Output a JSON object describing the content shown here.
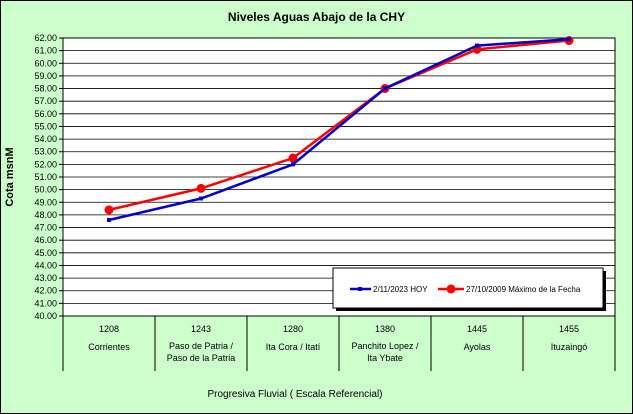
{
  "chart_data": {
    "type": "line",
    "title": "Niveles Aguas Abajo de la CHY",
    "ylabel": "Cota msnM",
    "xlabel": "Progresiva Fluvial ( Escala Referencial)",
    "ylim": [
      40,
      62
    ],
    "ytick_step": 1,
    "grid": true,
    "legend_position": "bottom-right",
    "categories": [
      {
        "km": "1208",
        "name": "Corrientes",
        "name2": ""
      },
      {
        "km": "1243",
        "name": "Paso de Patria /",
        "name2": "Paso de la Patria"
      },
      {
        "km": "1280",
        "name": "Ita Cora / Itatí",
        "name2": ""
      },
      {
        "km": "1380",
        "name": "Panchito Lopez /",
        "name2": "Ita Ybate"
      },
      {
        "km": "1445",
        "name": "Ayolas",
        "name2": ""
      },
      {
        "km": "1455",
        "name": "Ituzaingó",
        "name2": ""
      }
    ],
    "series": [
      {
        "name": "2/11/2023 HOY",
        "color": "#0000cc",
        "values": [
          47.6,
          49.3,
          52.0,
          58.0,
          61.4,
          61.9
        ]
      },
      {
        "name": "27/10/2009 Máximo de la Fecha",
        "color": "#ff0000",
        "values": [
          48.4,
          50.1,
          52.5,
          58.0,
          61.1,
          61.8
        ]
      }
    ]
  }
}
